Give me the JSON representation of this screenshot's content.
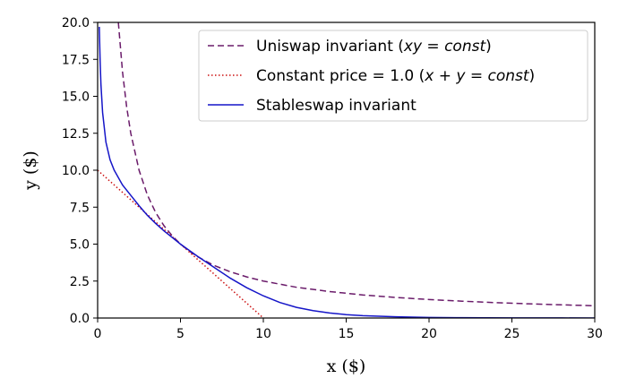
{
  "chart_data": {
    "type": "line",
    "xlabel": "x ($)",
    "ylabel": "y ($)",
    "xlim": [
      0,
      30
    ],
    "ylim": [
      0,
      20
    ],
    "xticks": [
      0,
      5,
      10,
      15,
      20,
      25,
      30
    ],
    "yticks": [
      0.0,
      2.5,
      5.0,
      7.5,
      10.0,
      12.5,
      15.0,
      17.5,
      20.0
    ],
    "xtick_labels": [
      "0",
      "5",
      "10",
      "15",
      "20",
      "25",
      "30"
    ],
    "ytick_labels": [
      "0.0",
      "2.5",
      "5.0",
      "7.5",
      "10.0",
      "12.5",
      "15.0",
      "17.5",
      "20.0"
    ],
    "grid": false,
    "legend_position": "top-right",
    "series": [
      {
        "name": "Uniswap invariant (xy = const)",
        "legend_prefix": "Uniswap invariant (",
        "legend_math": "xy = const",
        "legend_suffix": ")",
        "color": "#6a1b6a",
        "style": "dashed",
        "equation": "x*y = 25",
        "x": [
          1.25,
          1.5,
          1.75,
          2,
          2.5,
          3,
          3.5,
          4,
          4.5,
          5,
          5.5,
          6,
          7,
          8,
          9,
          10,
          12,
          14,
          16,
          18,
          20,
          22,
          24,
          26,
          28,
          30
        ],
        "y": [
          20,
          16.67,
          14.29,
          12.5,
          10,
          8.33,
          7.14,
          6.25,
          5.56,
          5,
          4.55,
          4.17,
          3.57,
          3.13,
          2.78,
          2.5,
          2.08,
          1.79,
          1.56,
          1.39,
          1.25,
          1.14,
          1.04,
          0.96,
          0.89,
          0.83
        ]
      },
      {
        "name": "Constant price = 1.0 (x + y = const)",
        "legend_prefix": "Constant price = 1.0 (",
        "legend_math": "x + y = const",
        "legend_suffix": ")",
        "color": "#cc1111",
        "style": "dotted",
        "equation": "x + y = 10",
        "x": [
          0,
          10
        ],
        "y": [
          10,
          0
        ]
      },
      {
        "name": "Stableswap invariant",
        "legend_prefix": "Stableswap invariant",
        "legend_math": "",
        "legend_suffix": "",
        "color": "#1515c8",
        "style": "solid",
        "x": [
          0.1,
          0.15,
          0.2,
          0.3,
          0.5,
          0.75,
          1,
          1.5,
          2,
          2.5,
          3,
          3.5,
          4,
          4.5,
          5,
          6,
          7,
          8,
          9,
          10,
          11,
          12,
          13,
          14,
          15,
          16,
          18,
          20,
          22,
          25,
          28,
          30
        ],
        "y": [
          19.7,
          17.4,
          15.8,
          13.9,
          11.9,
          10.7,
          10.0,
          9.0,
          8.3,
          7.6,
          6.95,
          6.4,
          5.9,
          5.45,
          5.0,
          4.2,
          3.45,
          2.7,
          2.05,
          1.5,
          1.05,
          0.72,
          0.5,
          0.34,
          0.23,
          0.16,
          0.08,
          0.04,
          0.02,
          0.01,
          0.005,
          0.0
        ]
      }
    ]
  }
}
